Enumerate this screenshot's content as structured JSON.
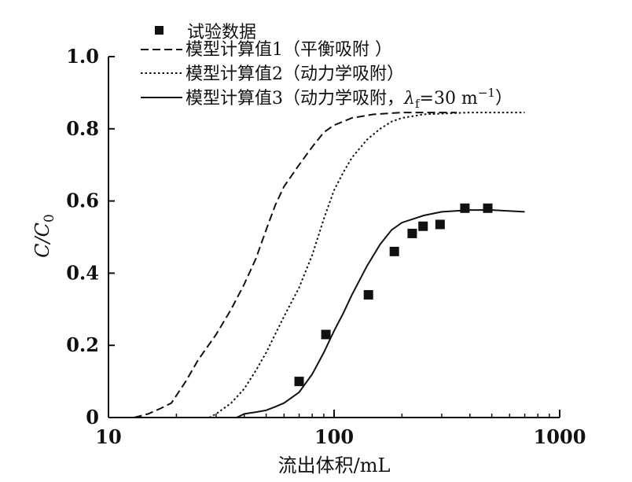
{
  "chart_data": {
    "type": "line",
    "title": "",
    "xlabel": "流出体积/mL",
    "ylabel": "C/C0",
    "ylabel_main": "C/C",
    "ylabel_sub": "0",
    "xscale": "log",
    "xlim": [
      10,
      1000
    ],
    "ylim": [
      0,
      1.0
    ],
    "x_ticks": [
      10,
      100,
      1000
    ],
    "x_tick_labels": [
      "10",
      "100",
      "1000"
    ],
    "y_ticks": [
      0,
      0.2,
      0.4,
      0.6,
      0.8,
      1.0
    ],
    "y_tick_labels": [
      "0",
      "0.2",
      "0.4",
      "0.6",
      "0.8",
      "1.0"
    ],
    "legend_position": "top-left",
    "series": [
      {
        "name": "试验数据",
        "legend_label": "试验数据",
        "style": "marker",
        "x": [
          70,
          92,
          142,
          185,
          222,
          248,
          295,
          380,
          480
        ],
        "y": [
          0.1,
          0.23,
          0.34,
          0.46,
          0.51,
          0.53,
          0.535,
          0.58,
          0.58
        ]
      },
      {
        "name": "模型计算值1（平衡吸附）",
        "legend_label": "模型计算值1（平衡吸附 ）",
        "style": "dashed",
        "x": [
          13,
          15,
          17,
          19,
          22,
          25,
          30,
          35,
          40,
          45,
          50,
          55,
          60,
          70,
          80,
          90,
          100,
          120,
          150,
          200,
          250,
          300,
          350
        ],
        "y": [
          0,
          0.01,
          0.025,
          0.04,
          0.1,
          0.16,
          0.23,
          0.3,
          0.37,
          0.44,
          0.52,
          0.59,
          0.64,
          0.7,
          0.75,
          0.79,
          0.81,
          0.83,
          0.84,
          0.845,
          0.845,
          0.845,
          0.845
        ]
      },
      {
        "name": "模型计算值2（动力学吸附）",
        "legend_label": "模型计算值2（动力学吸附）",
        "style": "dotted",
        "x": [
          28,
          30,
          35,
          40,
          45,
          50,
          60,
          70,
          80,
          90,
          100,
          110,
          120,
          140,
          160,
          180,
          200,
          250,
          300,
          400,
          500,
          700
        ],
        "y": [
          0,
          0.01,
          0.04,
          0.08,
          0.13,
          0.18,
          0.28,
          0.36,
          0.45,
          0.55,
          0.63,
          0.68,
          0.72,
          0.77,
          0.8,
          0.82,
          0.83,
          0.84,
          0.842,
          0.845,
          0.845,
          0.845
        ]
      },
      {
        "name": "模型计算值3（动力学吸附，λf=30 m-1）",
        "legend_label_main": "模型计算值3（动力学吸附，",
        "legend_label_lambda": "λ",
        "legend_label_lambda_sub": "f",
        "legend_label_eq": "=30  m",
        "legend_label_exp": "−1",
        "legend_label_end": "）",
        "style": "solid",
        "x": [
          37,
          40,
          45,
          50,
          55,
          60,
          70,
          80,
          90,
          100,
          110,
          120,
          140,
          160,
          180,
          200,
          250,
          300,
          400,
          500,
          700
        ],
        "y": [
          0,
          0.01,
          0.015,
          0.02,
          0.03,
          0.04,
          0.07,
          0.12,
          0.18,
          0.24,
          0.29,
          0.34,
          0.42,
          0.48,
          0.52,
          0.54,
          0.56,
          0.57,
          0.575,
          0.575,
          0.57
        ]
      }
    ]
  }
}
